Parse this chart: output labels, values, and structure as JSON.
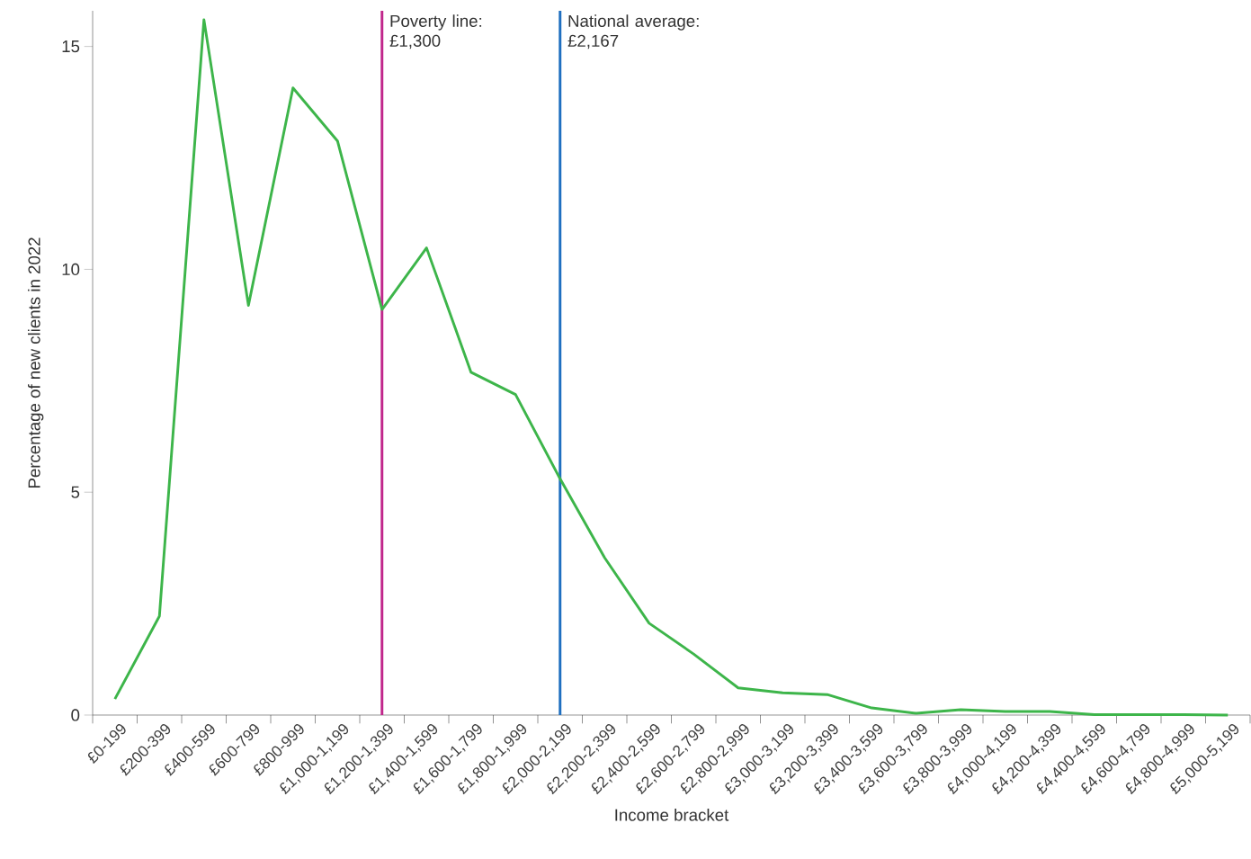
{
  "chart_data": {
    "type": "line",
    "xlabel": "Income bracket",
    "ylabel": "Percentage of new clients in 2022",
    "categories": [
      "£0-199",
      "£200-399",
      "£400-599",
      "£600-799",
      "£800-999",
      "£1,000-1,199",
      "£1,200-1,399",
      "£1,400-1,599",
      "£1,600-1,799",
      "£1,800-1,999",
      "£2,000-2,199",
      "£2,200-2,399",
      "£2,400-2,599",
      "£2,600-2,799",
      "£2,800-2,999",
      "£3,000-3,199",
      "£3,200-3,399",
      "£3,400-3,599",
      "£3,600-3,799",
      "£3,800-3,999",
      "£4,000-4,199",
      "£4,200-4,399",
      "£4,400-4,599",
      "£4,600-4,799",
      "£4,800-4,999",
      "£5,000-5,199"
    ],
    "series": [
      {
        "color": "#3db54a",
        "values": [
          0.36,
          2.22,
          15.6,
          9.19,
          14.07,
          12.88,
          9.1,
          10.48,
          7.69,
          7.19,
          5.3,
          3.53,
          2.06,
          1.37,
          0.61,
          0.5,
          0.46,
          0.16,
          0.04,
          0.12,
          0.08,
          0.08,
          0.01,
          0.01,
          0.01,
          0.0
        ]
      }
    ],
    "ylim": [
      0,
      15.8
    ],
    "yticks": [
      0,
      5,
      10,
      15
    ],
    "ref_lines": [
      {
        "axis": "x",
        "value": "£1,200-1,399",
        "label": "Poverty line: £1,300",
        "color": "#c0268b"
      },
      {
        "axis": "x",
        "value": "£2,000-2,199",
        "label": "National average: £2,167",
        "color": "#1f6fc0"
      }
    ],
    "grid": false,
    "marker": "none",
    "line_style": "solid"
  }
}
